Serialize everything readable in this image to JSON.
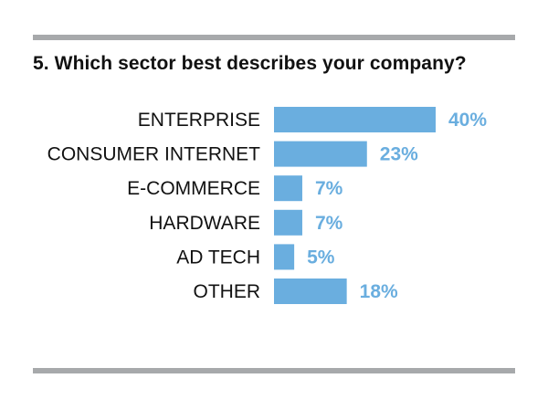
{
  "question": "5. Which sector best describes your company?",
  "colors": {
    "bar": "#6aaedf",
    "value_label": "#6aaedf",
    "rule": "#a7a9ab",
    "text": "#111111"
  },
  "chart_data": {
    "type": "bar",
    "orientation": "horizontal",
    "title": "5. Which sector best describes your company?",
    "categories": [
      "ENTERPRISE",
      "CONSUMER INTERNET",
      "E-COMMERCE",
      "HARDWARE",
      "AD TECH",
      "OTHER"
    ],
    "values": [
      40,
      23,
      7,
      7,
      5,
      18
    ],
    "value_labels": [
      "40%",
      "23%",
      "7%",
      "7%",
      "5%",
      "18%"
    ],
    "unit": "%",
    "xlim": [
      0,
      40
    ],
    "grid": false,
    "legend": "none"
  }
}
